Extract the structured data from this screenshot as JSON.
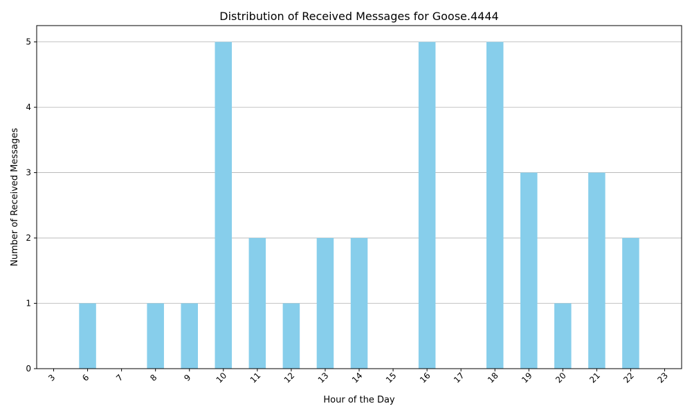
{
  "chart_data": {
    "type": "bar",
    "title": "Distribution of Received Messages for Goose.4444",
    "xlabel": "Hour of the Day",
    "ylabel": "Number of Received Messages",
    "categories": [
      "3",
      "6",
      "7",
      "8",
      "9",
      "10",
      "11",
      "12",
      "13",
      "14",
      "15",
      "16",
      "17",
      "18",
      "19",
      "20",
      "21",
      "22",
      "23"
    ],
    "values": [
      0,
      1,
      0,
      1,
      1,
      5,
      2,
      1,
      2,
      2,
      0,
      5,
      0,
      5,
      3,
      1,
      3,
      2,
      0
    ],
    "ylim": [
      0,
      5.25
    ],
    "yticks": [
      0,
      1,
      2,
      3,
      4,
      5
    ],
    "grid": "y",
    "bar_color": "#87ceeb",
    "xtick_rotation": -45
  }
}
